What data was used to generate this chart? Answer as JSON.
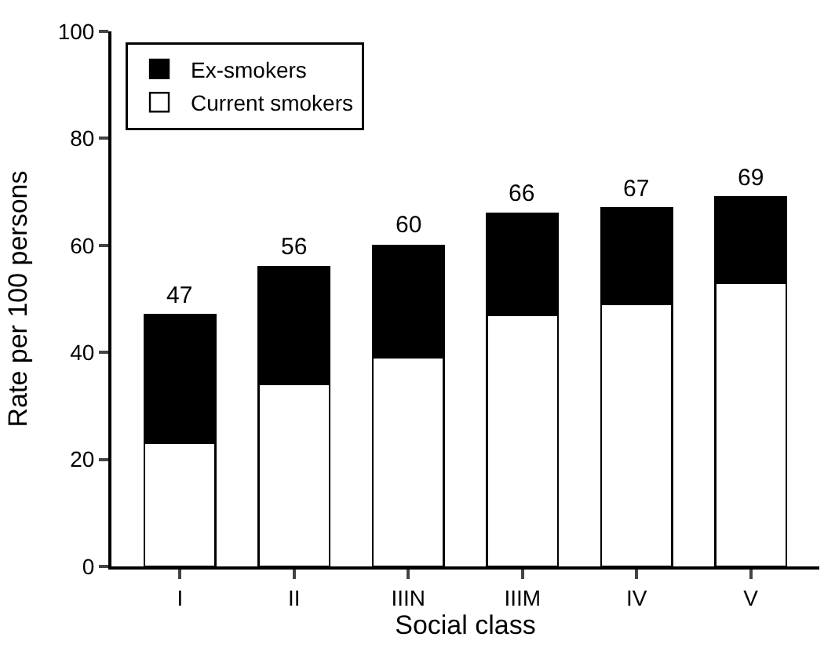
{
  "chart_data": {
    "type": "bar",
    "stacked": true,
    "xlabel": "Social class",
    "ylabel": "Rate per 100 persons",
    "categories": [
      "I",
      "II",
      "IIIN",
      "IIIM",
      "IV",
      "V"
    ],
    "series": [
      {
        "name": "Current smokers",
        "color": "#ffffff",
        "values": [
          23,
          34,
          39,
          47,
          49,
          53
        ]
      },
      {
        "name": "Ex-smokers",
        "color": "#000000",
        "values": [
          24,
          22,
          21,
          19,
          18,
          16
        ]
      }
    ],
    "totals": [
      "47",
      "56",
      "60",
      "66",
      "67",
      "69"
    ],
    "ylim": [
      0,
      100
    ],
    "yticks": [
      0,
      20,
      40,
      60,
      80,
      100
    ],
    "legend": "top left"
  }
}
